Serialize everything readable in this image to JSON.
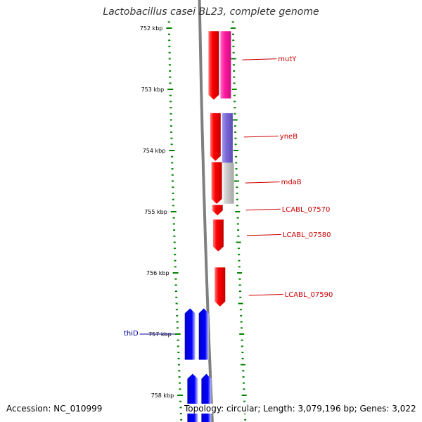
{
  "title": "Lactobacillus casei BL23, complete genome",
  "footer": {
    "accession": "Accession: NC_010999",
    "summary": "Topology: circular; Length: 3,079,196 bp; Genes: 3,022"
  },
  "colors": {
    "backbone": "#7f7f7f",
    "tick": "#008000",
    "forward_gene": "#ff0000",
    "reverse_gene": "#0000ff",
    "gene_label_forward": "#cc0000",
    "gene_label_reverse": "#000099",
    "feature_magenta": "#ff1aa0",
    "feature_purple": "#7b68d6",
    "feature_gray": "#c8c8c8",
    "tick_label": "#000000"
  },
  "scale": {
    "unit": "kbp",
    "major_ticks": [
      {
        "kbp": 752,
        "label": "752 kbp"
      },
      {
        "kbp": 753,
        "label": "753 kbp"
      },
      {
        "kbp": 754,
        "label": "754 kbp"
      },
      {
        "kbp": 755,
        "label": "755 kbp"
      },
      {
        "kbp": 756,
        "label": "756 kbp"
      },
      {
        "kbp": 757,
        "label": "757 kbp"
      },
      {
        "kbp": 758,
        "label": "758 kbp"
      }
    ]
  },
  "genes": [
    {
      "name": "mutY",
      "strand": "forward",
      "start_kbp": 752.05,
      "end_kbp": 753.17,
      "label": "mutY"
    },
    {
      "name": "yneB",
      "strand": "forward",
      "start_kbp": 753.39,
      "end_kbp": 754.17,
      "label": "yneB"
    },
    {
      "name": "mdaB",
      "strand": "forward",
      "start_kbp": 754.19,
      "end_kbp": 754.87,
      "label": "mdaB"
    },
    {
      "name": "LCABL_07570",
      "strand": "forward",
      "start_kbp": 754.89,
      "end_kbp": 755.06,
      "label": "LCABL_07570"
    },
    {
      "name": "LCABL_07580",
      "strand": "forward",
      "start_kbp": 755.13,
      "end_kbp": 755.65,
      "label": "LCABL_07580"
    },
    {
      "name": "LCABL_07590",
      "strand": "forward",
      "start_kbp": 755.91,
      "end_kbp": 756.55,
      "label": "LCABL_07590"
    },
    {
      "name": "thiD",
      "strand": "reverse",
      "start_kbp": 756.58,
      "end_kbp": 757.42,
      "label": "thiD"
    },
    {
      "name": "next_reverse",
      "strand": "reverse",
      "start_kbp": 757.65,
      "end_kbp": 758.45,
      "label": ""
    }
  ],
  "features": [
    {
      "name": "mutY-feature",
      "color": "magenta",
      "start_kbp": 752.05,
      "end_kbp": 753.15
    },
    {
      "name": "yneB-feature",
      "color": "purple",
      "start_kbp": 753.39,
      "end_kbp": 754.2
    },
    {
      "name": "mdaB-feature",
      "color": "gray",
      "start_kbp": 754.2,
      "end_kbp": 754.87
    }
  ]
}
